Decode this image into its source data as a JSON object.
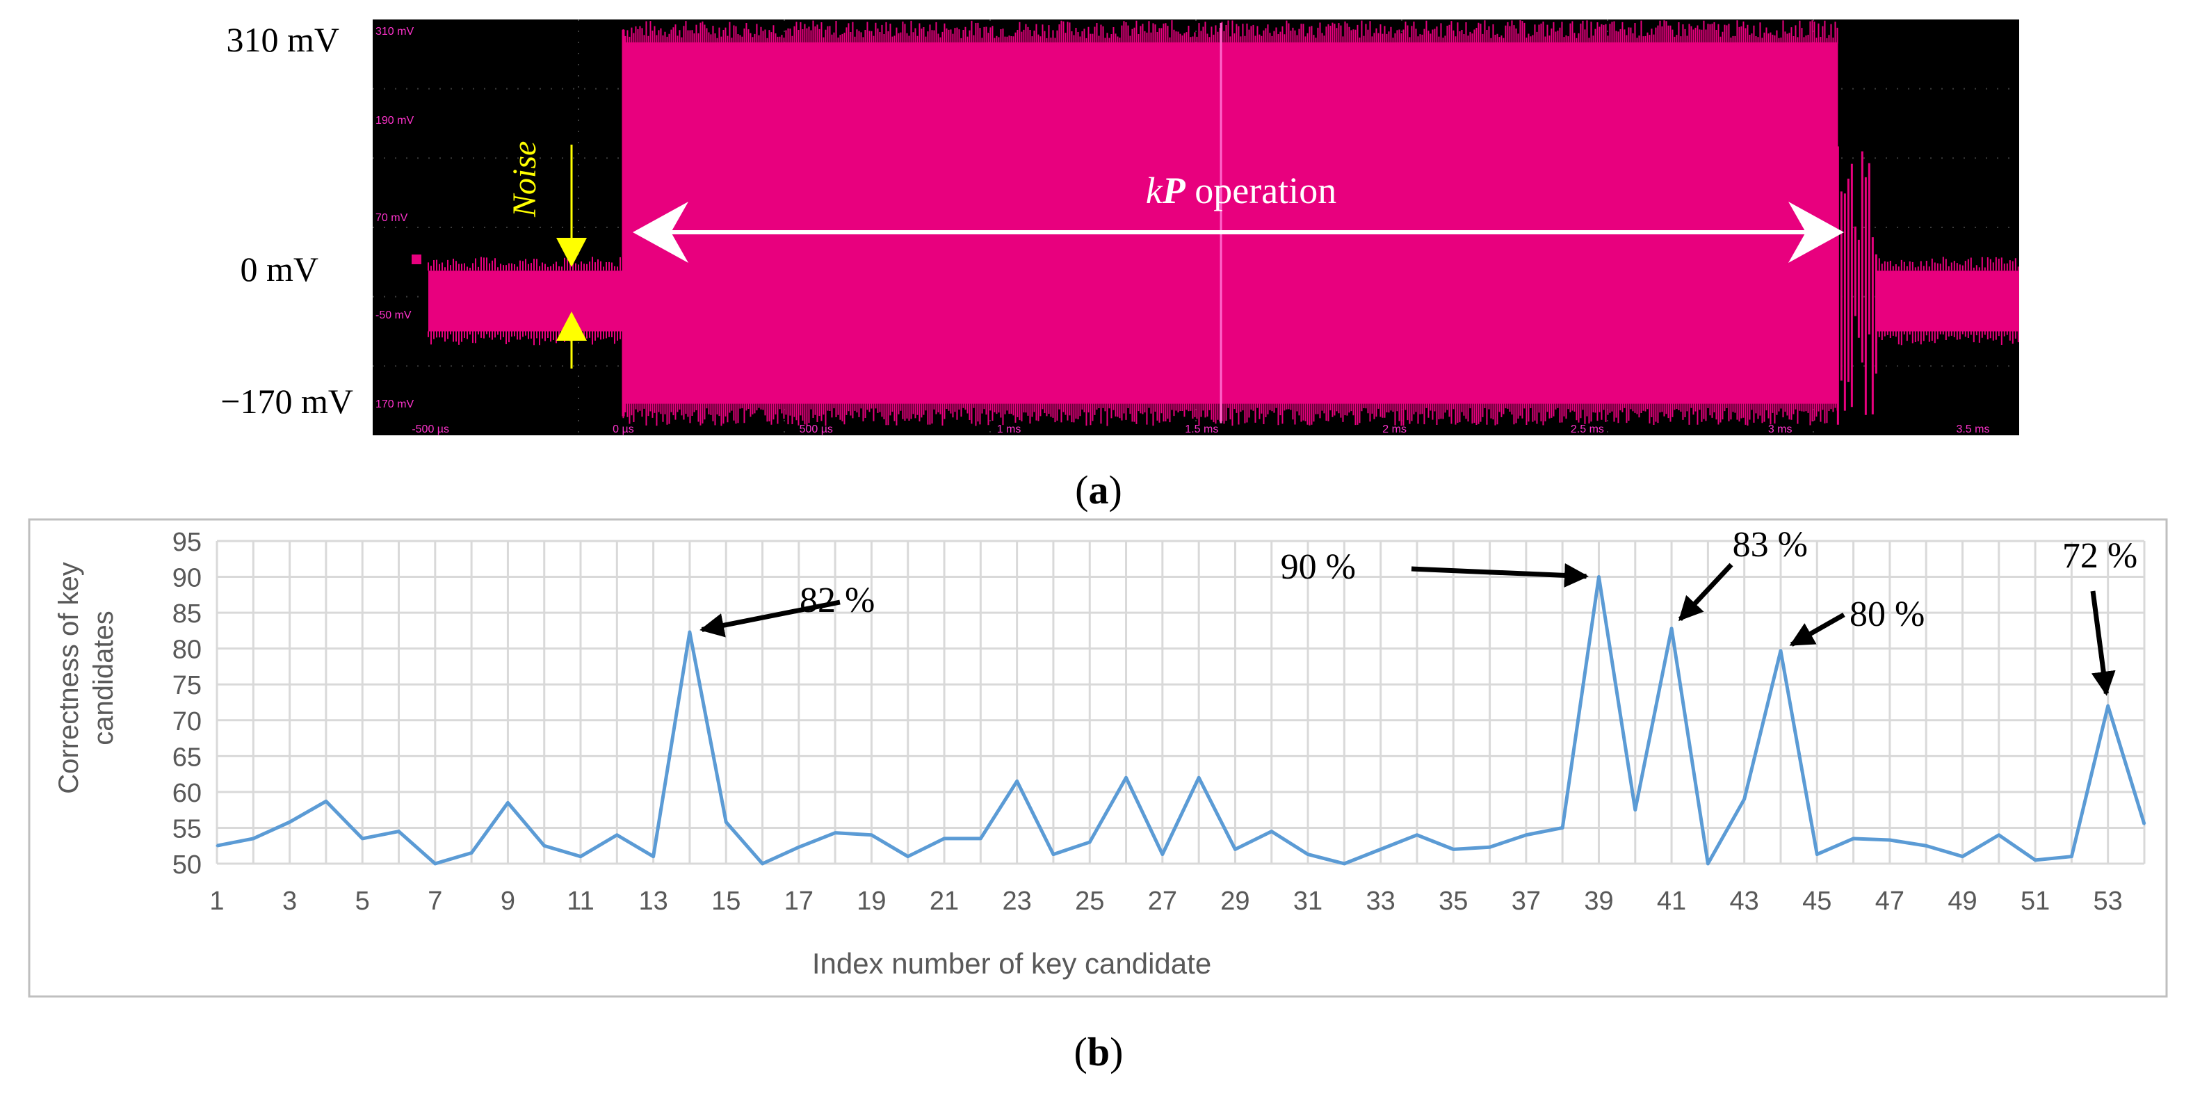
{
  "colors": {
    "scope_background": "#000000",
    "trace": "#e8007e",
    "scope_label": "#ff33cc",
    "grid": "#3c3c3c",
    "noise_annotation": "#ffff00",
    "arrow_white": "#ffffff",
    "line_series": "#5b9bd5",
    "grid_light": "#d9d9d9",
    "panel_border": "#bfbfbf",
    "annotation_arrow": "#000000"
  },
  "panel_a": {
    "caption_text": "a",
    "voltage_labels": [
      "310 mV",
      "0 mV",
      "−170 mV"
    ],
    "scope_y_ticks": [
      "310 mV",
      "190 mV",
      "70 mV",
      "-50 mV",
      "170 mV"
    ],
    "scope_x_ticks": [
      "-500 µs",
      "0 µs",
      "500 µs",
      "1 ms",
      "1.5 ms",
      "2 ms",
      "2.5 ms",
      "3 ms",
      "3.5 ms"
    ],
    "noise_label": "Noise",
    "kp_k": "k",
    "kp_p": "P",
    "kp_rest": " operation",
    "signal": {
      "y_range_mV": [
        -170,
        310
      ],
      "x_range_ms": [
        -0.65,
        3.62
      ],
      "noise_band_mV": [
        -50,
        20
      ],
      "active_window_ms": [
        0.0,
        3.15
      ],
      "active_band_mV": [
        -140,
        290
      ],
      "tail_ms": [
        3.15,
        3.25
      ]
    }
  },
  "panel_b": {
    "caption_text": "b",
    "chart_data": {
      "type": "line",
      "title": "",
      "xlabel": "Index number of key candidate",
      "ylabel": "Correctness of key candidates",
      "ylabel_lines": [
        "Correctness of key",
        "candidates"
      ],
      "ylim": [
        50,
        95
      ],
      "y_ticks": [
        50,
        55,
        60,
        65,
        70,
        75,
        80,
        85,
        90,
        95
      ],
      "x_ticks": [
        1,
        3,
        5,
        7,
        9,
        11,
        13,
        15,
        17,
        19,
        21,
        23,
        25,
        27,
        29,
        31,
        33,
        35,
        37,
        39,
        41,
        43,
        45,
        47,
        49,
        51,
        53
      ],
      "grid": true,
      "legend": "none",
      "x": [
        1,
        2,
        3,
        4,
        5,
        6,
        7,
        8,
        9,
        10,
        11,
        12,
        13,
        14,
        15,
        16,
        17,
        18,
        19,
        20,
        21,
        22,
        23,
        24,
        25,
        26,
        27,
        28,
        29,
        30,
        31,
        32,
        33,
        34,
        35,
        36,
        37,
        38,
        39,
        40,
        41,
        42,
        43,
        44,
        45,
        46,
        47,
        48,
        49,
        50,
        51,
        52,
        53,
        54
      ],
      "values": [
        52.5,
        53.5,
        55.8,
        58.7,
        53.5,
        54.5,
        50,
        51.5,
        58.5,
        52.5,
        51,
        54,
        51,
        82.3,
        55.8,
        50,
        52.3,
        54.3,
        54,
        51,
        53.5,
        53.5,
        61.5,
        51.3,
        53,
        62,
        51.3,
        62,
        52,
        54.5,
        51.3,
        50,
        52,
        54,
        52,
        52.3,
        54,
        55,
        90,
        57.5,
        82.8,
        50,
        59,
        79.7,
        51.3,
        53.5,
        53.3,
        52.5,
        51,
        54,
        50.5,
        51,
        72,
        55.5
      ],
      "annotations": [
        {
          "text": "82 %",
          "x": 14,
          "y": 82.3
        },
        {
          "text": "90 %",
          "x": 39,
          "y": 90
        },
        {
          "text": "83 %",
          "x": 41,
          "y": 82.8
        },
        {
          "text": "80 %",
          "x": 44,
          "y": 79.7
        },
        {
          "text": "72 %",
          "x": 53,
          "y": 72
        }
      ]
    }
  }
}
